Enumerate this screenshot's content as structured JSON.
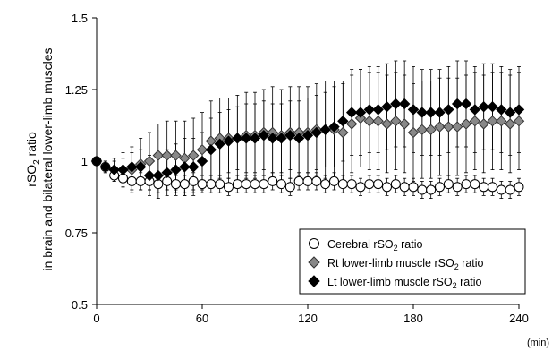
{
  "chart_data": {
    "type": "scatter",
    "ylabel_line1": "rSO",
    "ylabel_line1_sub": "2",
    "ylabel_line1_tail": " ratio",
    "ylabel_line2": "in brain and bilateral lower-limb muscles",
    "x_unit": "(min)",
    "xlim": [
      0,
      240
    ],
    "ylim": [
      0.5,
      1.5
    ],
    "x_ticks": [
      {
        "value": 0,
        "label": "0"
      },
      {
        "value": 60,
        "label": "60"
      },
      {
        "value": 120,
        "label": "120"
      },
      {
        "value": 180,
        "label": "180"
      },
      {
        "value": 240,
        "label": "240"
      }
    ],
    "y_ticks": [
      {
        "value": 0.5,
        "label": "0.5"
      },
      {
        "value": 0.75,
        "label": "0.75"
      },
      {
        "value": 1.0,
        "label": "1"
      },
      {
        "value": 1.25,
        "label": "1.25"
      },
      {
        "value": 1.5,
        "label": "1.5"
      }
    ],
    "legend_position": "bottom-right",
    "series": [
      {
        "name": "Cerebral rSO2 ratio",
        "legend_main": "Cerebral rSO",
        "legend_sub": "2",
        "legend_tail": " ratio",
        "marker": "circle",
        "fill": "#ffffff",
        "stroke": "#000000",
        "x": [
          0,
          5,
          10,
          15,
          20,
          25,
          30,
          35,
          40,
          45,
          50,
          55,
          60,
          65,
          70,
          75,
          80,
          85,
          90,
          95,
          100,
          105,
          110,
          115,
          120,
          125,
          130,
          135,
          140,
          145,
          150,
          155,
          160,
          165,
          170,
          175,
          180,
          185,
          190,
          195,
          200,
          205,
          210,
          215,
          220,
          225,
          230,
          235,
          240
        ],
        "y": [
          1.0,
          0.98,
          0.95,
          0.94,
          0.93,
          0.93,
          0.93,
          0.92,
          0.93,
          0.92,
          0.92,
          0.93,
          0.92,
          0.92,
          0.92,
          0.91,
          0.92,
          0.92,
          0.92,
          0.92,
          0.93,
          0.92,
          0.91,
          0.93,
          0.93,
          0.93,
          0.92,
          0.93,
          0.92,
          0.92,
          0.91,
          0.92,
          0.92,
          0.91,
          0.92,
          0.91,
          0.91,
          0.9,
          0.9,
          0.91,
          0.92,
          0.91,
          0.92,
          0.92,
          0.91,
          0.91,
          0.9,
          0.9,
          0.91
        ],
        "err": [
          0,
          0.01,
          0.02,
          0.03,
          0.03,
          0.03,
          0.03,
          0.03,
          0.03,
          0.03,
          0.03,
          0.03,
          0.03,
          0.03,
          0.03,
          0.03,
          0.03,
          0.03,
          0.03,
          0.03,
          0.03,
          0.03,
          0.03,
          0.03,
          0.03,
          0.03,
          0.03,
          0.03,
          0.03,
          0.03,
          0.03,
          0.03,
          0.03,
          0.03,
          0.03,
          0.03,
          0.03,
          0.03,
          0.03,
          0.03,
          0.03,
          0.03,
          0.03,
          0.03,
          0.03,
          0.03,
          0.03,
          0.03,
          0.03
        ]
      },
      {
        "name": "Rt lower-limb muscle rSO2 ratio",
        "legend_main": "Rt lower-limb muscle rSO",
        "legend_sub": "2",
        "legend_tail": " ratio",
        "marker": "diamond",
        "fill": "#888888",
        "stroke": "#333333",
        "x": [
          0,
          5,
          10,
          15,
          20,
          25,
          30,
          35,
          40,
          45,
          50,
          55,
          60,
          65,
          70,
          75,
          80,
          85,
          90,
          95,
          100,
          105,
          110,
          115,
          120,
          125,
          130,
          135,
          140,
          145,
          150,
          155,
          160,
          165,
          170,
          175,
          180,
          185,
          190,
          195,
          200,
          205,
          210,
          215,
          220,
          225,
          230,
          235,
          240
        ],
        "y": [
          1.0,
          0.98,
          0.97,
          0.97,
          0.97,
          0.99,
          1.0,
          1.02,
          1.02,
          1.02,
          1.01,
          1.02,
          1.04,
          1.07,
          1.08,
          1.08,
          1.08,
          1.09,
          1.09,
          1.1,
          1.1,
          1.09,
          1.1,
          1.1,
          1.1,
          1.11,
          1.11,
          1.11,
          1.1,
          1.13,
          1.15,
          1.14,
          1.14,
          1.13,
          1.14,
          1.13,
          1.1,
          1.11,
          1.11,
          1.12,
          1.12,
          1.12,
          1.13,
          1.14,
          1.13,
          1.14,
          1.14,
          1.13,
          1.14
        ],
        "err": [
          0,
          0.02,
          0.04,
          0.06,
          0.08,
          0.09,
          0.1,
          0.11,
          0.12,
          0.12,
          0.13,
          0.13,
          0.13,
          0.14,
          0.14,
          0.14,
          0.15,
          0.15,
          0.15,
          0.15,
          0.16,
          0.16,
          0.16,
          0.16,
          0.16,
          0.16,
          0.17,
          0.17,
          0.17,
          0.17,
          0.17,
          0.17,
          0.17,
          0.17,
          0.17,
          0.17,
          0.17,
          0.17,
          0.17,
          0.17,
          0.17,
          0.17,
          0.17,
          0.17,
          0.17,
          0.17,
          0.17,
          0.17,
          0.17
        ]
      },
      {
        "name": "Lt lower-limb muscle rSO2 ratio",
        "legend_main": "Lt lower-limb muscle rSO",
        "legend_sub": "2",
        "legend_tail": " ratio",
        "marker": "diamond",
        "fill": "#000000",
        "stroke": "#000000",
        "x": [
          0,
          5,
          10,
          15,
          20,
          25,
          30,
          35,
          40,
          45,
          50,
          55,
          60,
          65,
          70,
          75,
          80,
          85,
          90,
          95,
          100,
          105,
          110,
          115,
          120,
          125,
          130,
          135,
          140,
          145,
          150,
          155,
          160,
          165,
          170,
          175,
          180,
          185,
          190,
          195,
          200,
          205,
          210,
          215,
          220,
          225,
          230,
          235,
          240
        ],
        "y": [
          1.0,
          0.98,
          0.97,
          0.97,
          0.98,
          0.98,
          0.95,
          0.95,
          0.96,
          0.97,
          0.98,
          0.98,
          1.0,
          1.04,
          1.06,
          1.07,
          1.08,
          1.08,
          1.08,
          1.09,
          1.08,
          1.08,
          1.09,
          1.08,
          1.09,
          1.1,
          1.11,
          1.12,
          1.14,
          1.17,
          1.17,
          1.18,
          1.18,
          1.19,
          1.2,
          1.2,
          1.18,
          1.17,
          1.17,
          1.17,
          1.18,
          1.2,
          1.2,
          1.18,
          1.19,
          1.19,
          1.18,
          1.17,
          1.18
        ],
        "err": [
          0,
          0.02,
          0.03,
          0.04,
          0.05,
          0.06,
          0.07,
          0.08,
          0.08,
          0.09,
          0.1,
          0.1,
          0.1,
          0.11,
          0.11,
          0.11,
          0.11,
          0.12,
          0.12,
          0.12,
          0.12,
          0.12,
          0.12,
          0.13,
          0.13,
          0.13,
          0.13,
          0.14,
          0.14,
          0.15,
          0.15,
          0.15,
          0.15,
          0.15,
          0.15,
          0.15,
          0.15,
          0.15,
          0.15,
          0.15,
          0.15,
          0.15,
          0.15,
          0.15,
          0.15,
          0.15,
          0.15,
          0.15,
          0.15
        ]
      }
    ]
  }
}
